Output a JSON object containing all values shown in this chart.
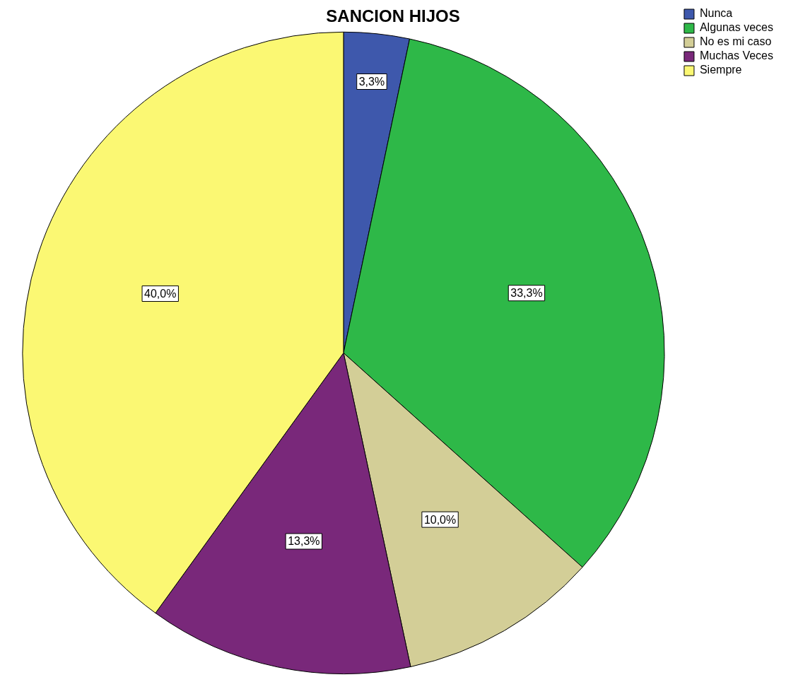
{
  "chart_data": {
    "type": "pie",
    "title": "SANCION HIJOS",
    "categories": [
      "Nunca",
      "Algunas veces",
      "No es mi caso",
      "Muchas Veces",
      "Siempre"
    ],
    "values": [
      3.3,
      33.3,
      10.0,
      13.3,
      40.0
    ],
    "colors": [
      "#3e58ac",
      "#2eb848",
      "#d3ce97",
      "#79287a",
      "#fbf873"
    ],
    "value_labels": [
      "3,3%",
      "33,3%",
      "10,0%",
      "13,3%",
      "40,0%"
    ],
    "legend": "top right"
  }
}
